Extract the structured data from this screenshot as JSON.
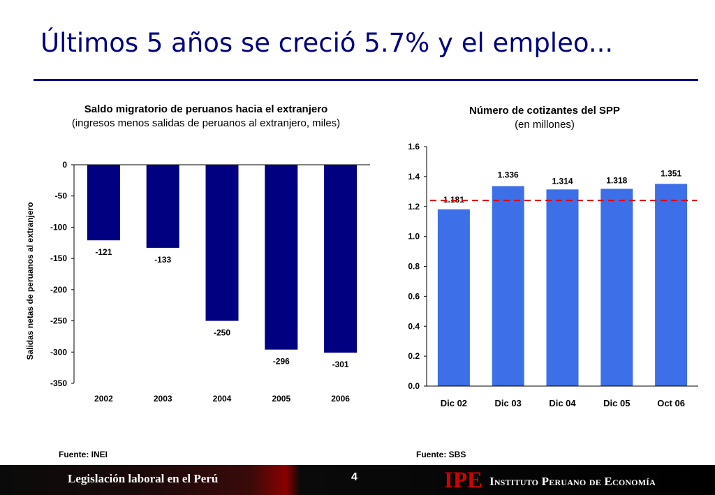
{
  "slide": {
    "title": "Últimos 5 años se creció 5.7% y el empleo...",
    "page_number": "4",
    "footer_text": "Legislación laboral en el Perú",
    "logo_text": "IPE",
    "institution": "Instituto Peruano de Economía"
  },
  "left_panel": {
    "title": "Saldo migratorio de peruanos hacia el extranjero",
    "subtitle": "(ingresos menos salidas de peruanos al extranjero, miles)",
    "source": "Fuente: INEI"
  },
  "right_panel": {
    "title": "Número de cotizantes del SPP",
    "subtitle": "(en millones)",
    "source": "Fuente: SBS"
  },
  "chart_data": [
    {
      "type": "bar",
      "title": "Saldo migratorio de peruanos hacia el extranjero",
      "subtitle": "(ingresos menos salidas de peruanos al extranjero, miles)",
      "categories": [
        "2002",
        "2003",
        "2004",
        "2005",
        "2006"
      ],
      "values": [
        -121,
        -133,
        -250,
        -296,
        -301
      ],
      "data_labels": [
        "-121",
        "-133",
        "-250",
        "-296",
        "-301"
      ],
      "ylabel": "Salidas netas de peruanos al extranjero",
      "xlabel": "",
      "ylim": [
        -350,
        0
      ],
      "yticks": [
        0,
        -50,
        -100,
        -150,
        -200,
        -250,
        -300,
        -350
      ],
      "ytick_labels": [
        "0",
        "-50",
        "-100",
        "-150",
        "-200",
        "-250",
        "-300",
        "-350"
      ],
      "bar_color": "#000080",
      "grid": false,
      "legend": "none"
    },
    {
      "type": "bar",
      "title": "Número de cotizantes del SPP",
      "subtitle": "(en millones)",
      "categories": [
        "Dic 02",
        "Dic 03",
        "Dic 04",
        "Dic 05",
        "Oct 06"
      ],
      "values": [
        1.181,
        1.336,
        1.314,
        1.318,
        1.351
      ],
      "data_labels": [
        "1.181",
        "1.336",
        "1.314",
        "1.318",
        "1.351"
      ],
      "xlabel": "",
      "ylabel": "",
      "ylim": [
        0,
        1.6
      ],
      "yticks": [
        0,
        0.2,
        0.4,
        0.6,
        0.8,
        1.0,
        1.2,
        1.4,
        1.6
      ],
      "ytick_labels": [
        "0.0",
        "0.2",
        "0.4",
        "0.6",
        "0.8",
        "1.0",
        "1.2",
        "1.4",
        "1.6"
      ],
      "reference_line": 1.24,
      "reference_line_color": "#e00000",
      "bar_color": "#3d6fe8",
      "grid": false,
      "legend": "none"
    }
  ]
}
